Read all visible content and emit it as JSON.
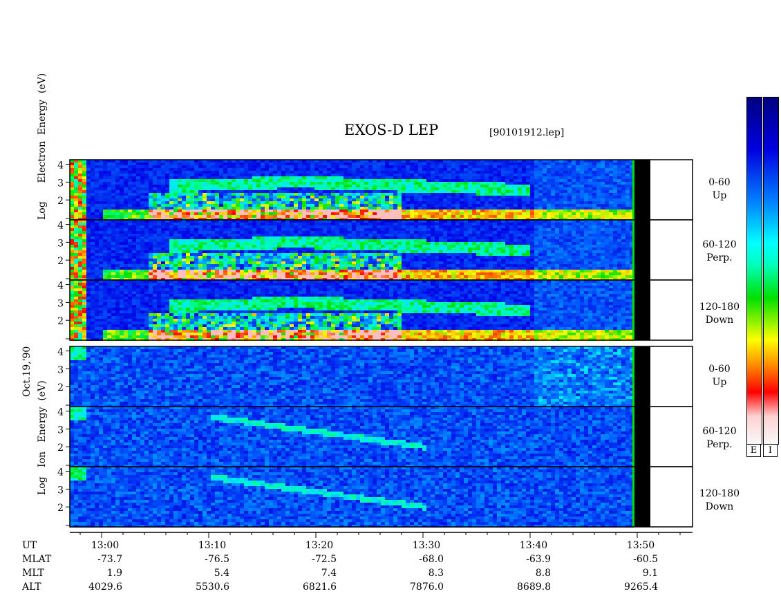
{
  "header": {
    "title": "EXOS-D LEP",
    "file": "[90101912.lep]"
  },
  "axes": {
    "date_label": "Oct.19,'90",
    "electron_label": [
      "Log",
      "Electron",
      "Energy",
      "(eV)"
    ],
    "ion_label": [
      "Log",
      "Ion",
      "Energy",
      "(eV)"
    ]
  },
  "panels": [
    {
      "group": "electron",
      "name1": "0-60",
      "name2": "Up"
    },
    {
      "group": "electron",
      "name1": "60-120",
      "name2": "Perp."
    },
    {
      "group": "electron",
      "name1": "120-180",
      "name2": "Down"
    },
    {
      "group": "ion",
      "name1": "0-60",
      "name2": "Up"
    },
    {
      "group": "ion",
      "name1": "60-120",
      "name2": "Perp."
    },
    {
      "group": "ion",
      "name1": "120-180",
      "name2": "Down"
    }
  ],
  "colorbar": {
    "labels": [
      "E",
      "I"
    ],
    "colors": [
      "#f4f4f4",
      "#ff0000",
      "#ff8000",
      "#ffff00",
      "#00e000",
      "#00ffff",
      "#0080ff",
      "#0000c0",
      "#000080"
    ]
  },
  "chart_data": {
    "type": "heatmap",
    "title": "EXOS-D LEP",
    "xlabel": "UT",
    "x_ticks": [
      "13:00",
      "13:10",
      "13:20",
      "13:30",
      "13:40",
      "13:50"
    ],
    "y_ticks": [
      "1",
      "2",
      "3",
      "4"
    ],
    "ylim": [
      1,
      4
    ],
    "ephemeris": {
      "rows": [
        "UT",
        "MLAT",
        "MLT",
        "ALT"
      ],
      "UT": [
        "13:00",
        "13:10",
        "13:20",
        "13:30",
        "13:40",
        "13:50"
      ],
      "MLAT": [
        "-73.7",
        "-76.5",
        "-72.5",
        "-68.0",
        "-63.9",
        "-60.5"
      ],
      "MLT": [
        "1.9",
        "5.4",
        "7.4",
        "8.3",
        "8.8",
        "9.1"
      ],
      "ALT": [
        "4029.6",
        "5530.6",
        "6821.6",
        "7876.0",
        "8689.8",
        "9265.4"
      ]
    }
  }
}
